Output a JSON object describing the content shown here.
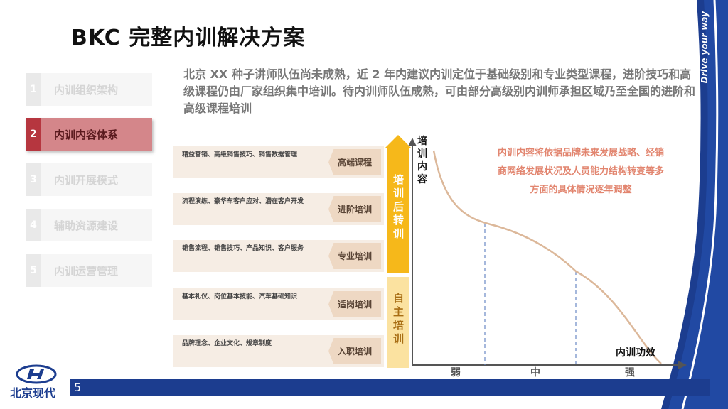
{
  "title": "BKC 完整内训解决方案",
  "intro": "北京 XX 种子讲师队伍尚未成熟，近 2 年内建议内训定位于基础级别和专业类型课程，进阶技巧和高级课程仍由厂家组织集中培训。待内训师队伍成熟，可由部分高级别内训师承担区域乃至全国的进阶和高级课程培训",
  "nav": [
    {
      "num": "1",
      "label": "内训组织架构"
    },
    {
      "num": "2",
      "label": "内训内容体系"
    },
    {
      "num": "3",
      "label": "内训开展模式"
    },
    {
      "num": "4",
      "label": "辅助资源建设"
    },
    {
      "num": "5",
      "label": "内训运营管理"
    }
  ],
  "rows": [
    {
      "desc": "精益营销、高级销售技巧、销售数据管理",
      "tag": "高端课程"
    },
    {
      "desc": "流程演练、豪华车客户应对、潜在客户开发",
      "tag": "进阶培训"
    },
    {
      "desc": "销售流程、销售技巧、产品知识、客户服务",
      "tag": "专业培训"
    },
    {
      "desc": "基本礼仪、岗位基本技能、汽车基础知识",
      "tag": "适岗培训"
    },
    {
      "desc": "品牌理念、企业文化、规章制度",
      "tag": "入职培训"
    }
  ],
  "vbar_top": "培训后转训",
  "vbar_bottom": "自主培训",
  "note": "内训内容将依据品牌未来发展战略、经销商网络发展状况及人员能力结构转变等多方面的具体情况逐年调整",
  "y_axis_label": "培训内容",
  "x_axis_label": "内训功效",
  "x_ticks": [
    "弱",
    "中",
    "强"
  ],
  "slogan": "Drive your way",
  "logo_text": "北京现代",
  "page_number": "5",
  "colors": {
    "accent_red": "#b6363f",
    "navy": "#1c3d8f",
    "gold": "#f6b81a",
    "gold_light": "#fbe2a0",
    "curve": "#dcb89a"
  }
}
